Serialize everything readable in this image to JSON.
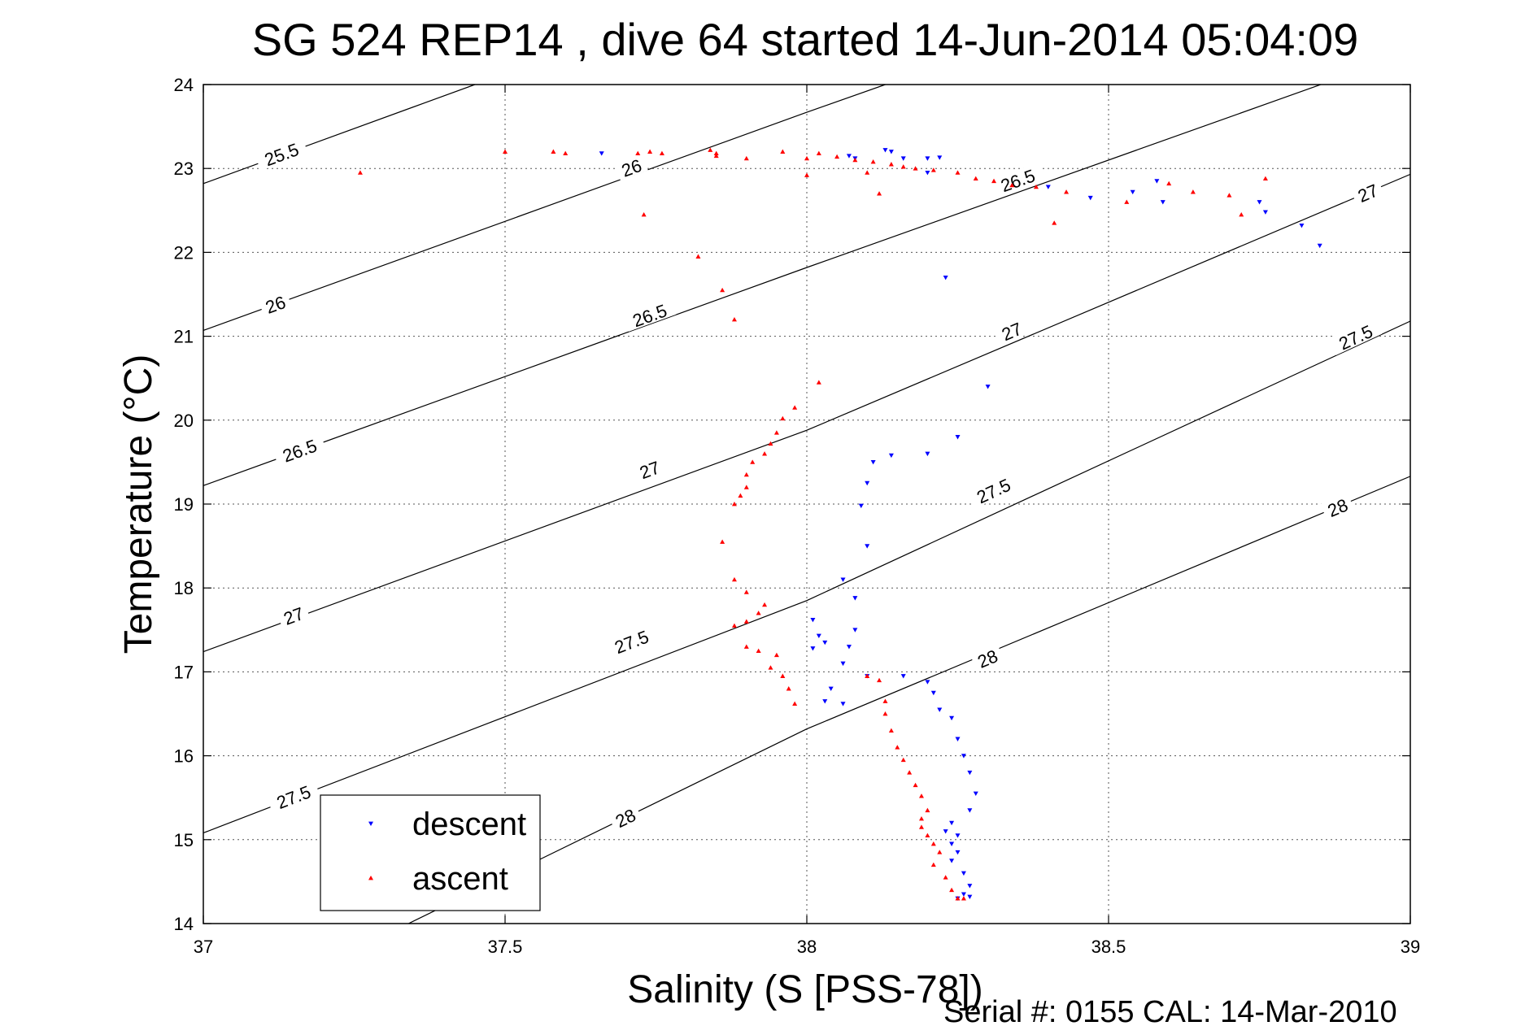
{
  "chart_data": {
    "type": "scatter",
    "title": "SG 524   REP14  , dive 64 started 14-Jun-2014 05:04:09",
    "xlabel": "Salinity (S [PSS-78])",
    "ylabel": "Temperature (°C)",
    "xlim": [
      37,
      39
    ],
    "ylim": [
      14,
      24
    ],
    "x_ticks": [
      "37",
      "37.5",
      "38",
      "38.5",
      "39"
    ],
    "y_ticks": [
      "14",
      "15",
      "16",
      "17",
      "18",
      "19",
      "20",
      "21",
      "22",
      "23",
      "24"
    ],
    "grid": true,
    "legend_position": "bottom-left",
    "footer": "Serial #: 0155  CAL: 14-Mar-2010",
    "density_contours": [
      {
        "value": 25.5,
        "points": [
          [
            37,
            22.82
          ],
          [
            37.45,
            24.0
          ]
        ],
        "labels": [
          {
            "text": "25.5",
            "s": 37.13,
            "t": 23.16
          }
        ]
      },
      {
        "value": 26,
        "points": [
          [
            37,
            21.07
          ],
          [
            38.0,
            23.67
          ],
          [
            38.13,
            24.0
          ]
        ],
        "labels": [
          {
            "text": "26",
            "s": 37.12,
            "t": 21.37
          },
          {
            "text": "26",
            "s": 37.71,
            "t": 23.0
          }
        ]
      },
      {
        "value": 26.5,
        "points": [
          [
            37,
            19.22
          ],
          [
            38.0,
            21.82
          ],
          [
            39.0,
            24.38
          ]
        ],
        "labels": [
          {
            "text": "26.5",
            "s": 37.16,
            "t": 19.63
          },
          {
            "text": "26.5",
            "s": 37.74,
            "t": 21.24
          },
          {
            "text": "26.5",
            "s": 38.35,
            "t": 22.85
          }
        ]
      },
      {
        "value": 27,
        "points": [
          [
            37,
            17.24
          ],
          [
            38.0,
            19.88
          ],
          [
            39.0,
            22.93
          ]
        ],
        "labels": [
          {
            "text": "27",
            "s": 37.15,
            "t": 17.66
          },
          {
            "text": "27",
            "s": 37.74,
            "t": 19.4
          },
          {
            "text": "27",
            "s": 38.34,
            "t": 21.05
          },
          {
            "text": "27",
            "s": 38.93,
            "t": 22.7
          }
        ]
      },
      {
        "value": 27.5,
        "points": [
          [
            37,
            15.08
          ],
          [
            38.0,
            17.85
          ],
          [
            39.0,
            21.18
          ]
        ],
        "labels": [
          {
            "text": "27.5",
            "s": 37.15,
            "t": 15.5
          },
          {
            "text": "27.5",
            "s": 37.71,
            "t": 17.35
          },
          {
            "text": "27.5",
            "s": 38.31,
            "t": 19.15
          },
          {
            "text": "27.5",
            "s": 38.91,
            "t": 20.98
          }
        ]
      },
      {
        "value": 28,
        "points": [
          [
            37.34,
            14.0
          ],
          [
            38.0,
            16.32
          ],
          [
            39.0,
            19.33
          ]
        ],
        "labels": [
          {
            "text": "28",
            "s": 37.7,
            "t": 15.25
          },
          {
            "text": "28",
            "s": 38.3,
            "t": 17.15
          },
          {
            "text": "28",
            "s": 38.88,
            "t": 18.95
          }
        ]
      }
    ],
    "series": [
      {
        "name": "descent",
        "marker": "down-triangle",
        "color": "#0000ff",
        "points": [
          [
            37.66,
            23.18
          ],
          [
            38.07,
            23.15
          ],
          [
            38.08,
            23.12
          ],
          [
            38.13,
            23.22
          ],
          [
            38.14,
            23.2
          ],
          [
            38.16,
            23.12
          ],
          [
            38.2,
            23.12
          ],
          [
            38.22,
            23.13
          ],
          [
            38.2,
            22.95
          ],
          [
            38.4,
            22.78
          ],
          [
            38.47,
            22.65
          ],
          [
            38.54,
            22.72
          ],
          [
            38.58,
            22.85
          ],
          [
            38.59,
            22.6
          ],
          [
            38.75,
            22.6
          ],
          [
            38.76,
            22.48
          ],
          [
            38.82,
            22.32
          ],
          [
            38.85,
            22.08
          ],
          [
            38.23,
            21.7
          ],
          [
            38.3,
            20.4
          ],
          [
            38.25,
            19.8
          ],
          [
            38.2,
            19.6
          ],
          [
            38.14,
            19.58
          ],
          [
            38.11,
            19.5
          ],
          [
            38.1,
            19.25
          ],
          [
            38.09,
            18.98
          ],
          [
            38.1,
            18.5
          ],
          [
            38.06,
            18.1
          ],
          [
            38.08,
            17.88
          ],
          [
            38.01,
            17.62
          ],
          [
            38.02,
            17.43
          ],
          [
            38.03,
            17.35
          ],
          [
            38.01,
            17.28
          ],
          [
            38.08,
            17.5
          ],
          [
            38.07,
            17.3
          ],
          [
            38.06,
            17.1
          ],
          [
            38.04,
            16.8
          ],
          [
            38.03,
            16.65
          ],
          [
            38.06,
            16.62
          ],
          [
            38.1,
            16.95
          ],
          [
            38.16,
            16.95
          ],
          [
            38.2,
            16.88
          ],
          [
            38.21,
            16.75
          ],
          [
            38.22,
            16.55
          ],
          [
            38.24,
            16.45
          ],
          [
            38.25,
            16.2
          ],
          [
            38.26,
            16.0
          ],
          [
            38.27,
            15.8
          ],
          [
            38.28,
            15.55
          ],
          [
            38.27,
            15.35
          ],
          [
            38.24,
            15.2
          ],
          [
            38.25,
            15.05
          ],
          [
            38.23,
            15.1
          ],
          [
            38.24,
            14.95
          ],
          [
            38.25,
            14.85
          ],
          [
            38.24,
            14.75
          ],
          [
            38.26,
            14.6
          ],
          [
            38.27,
            14.45
          ],
          [
            38.26,
            14.35
          ],
          [
            38.27,
            14.32
          ],
          [
            38.25,
            14.3
          ]
        ]
      },
      {
        "name": "ascent",
        "marker": "up-triangle",
        "color": "#ff0000",
        "points": [
          [
            37.26,
            22.95
          ],
          [
            37.5,
            23.2
          ],
          [
            37.58,
            23.2
          ],
          [
            37.6,
            23.18
          ],
          [
            37.72,
            23.18
          ],
          [
            37.74,
            23.2
          ],
          [
            37.76,
            23.18
          ],
          [
            37.84,
            23.22
          ],
          [
            37.85,
            23.18
          ],
          [
            37.85,
            23.15
          ],
          [
            37.9,
            23.12
          ],
          [
            37.96,
            23.2
          ],
          [
            38.0,
            23.12
          ],
          [
            38.02,
            23.18
          ],
          [
            38.05,
            23.14
          ],
          [
            38.08,
            23.1
          ],
          [
            38.11,
            23.08
          ],
          [
            38.14,
            23.05
          ],
          [
            38.16,
            23.02
          ],
          [
            38.18,
            23.0
          ],
          [
            38.21,
            22.98
          ],
          [
            38.25,
            22.95
          ],
          [
            38.28,
            22.88
          ],
          [
            38.31,
            22.85
          ],
          [
            38.34,
            22.8
          ],
          [
            38.38,
            22.78
          ],
          [
            38.43,
            22.72
          ],
          [
            38.53,
            22.6
          ],
          [
            38.6,
            22.82
          ],
          [
            38.64,
            22.72
          ],
          [
            38.7,
            22.68
          ],
          [
            38.72,
            22.45
          ],
          [
            38.76,
            22.88
          ],
          [
            38.1,
            22.95
          ],
          [
            38.12,
            22.7
          ],
          [
            38.0,
            22.92
          ],
          [
            38.41,
            22.35
          ],
          [
            37.73,
            22.45
          ],
          [
            37.82,
            21.95
          ],
          [
            37.86,
            21.55
          ],
          [
            37.88,
            21.2
          ],
          [
            38.02,
            20.45
          ],
          [
            37.98,
            20.15
          ],
          [
            37.96,
            20.02
          ],
          [
            37.95,
            19.85
          ],
          [
            37.94,
            19.72
          ],
          [
            37.93,
            19.6
          ],
          [
            37.91,
            19.5
          ],
          [
            37.9,
            19.35
          ],
          [
            37.9,
            19.2
          ],
          [
            37.89,
            19.1
          ],
          [
            37.88,
            19.0
          ],
          [
            37.86,
            18.55
          ],
          [
            37.88,
            18.1
          ],
          [
            37.9,
            17.95
          ],
          [
            37.93,
            17.8
          ],
          [
            37.92,
            17.7
          ],
          [
            37.9,
            17.6
          ],
          [
            37.88,
            17.55
          ],
          [
            37.9,
            17.3
          ],
          [
            37.92,
            17.25
          ],
          [
            37.95,
            17.2
          ],
          [
            37.94,
            17.05
          ],
          [
            37.96,
            16.95
          ],
          [
            37.97,
            16.8
          ],
          [
            37.98,
            16.62
          ],
          [
            38.1,
            16.95
          ],
          [
            38.12,
            16.9
          ],
          [
            38.13,
            16.65
          ],
          [
            38.13,
            16.5
          ],
          [
            38.14,
            16.3
          ],
          [
            38.15,
            16.1
          ],
          [
            38.16,
            15.95
          ],
          [
            38.17,
            15.8
          ],
          [
            38.18,
            15.65
          ],
          [
            38.19,
            15.52
          ],
          [
            38.2,
            15.35
          ],
          [
            38.19,
            15.25
          ],
          [
            38.19,
            15.15
          ],
          [
            38.2,
            15.05
          ],
          [
            38.21,
            14.95
          ],
          [
            38.22,
            14.85
          ],
          [
            38.21,
            14.7
          ],
          [
            38.23,
            14.55
          ],
          [
            38.24,
            14.4
          ],
          [
            38.25,
            14.3
          ],
          [
            38.26,
            14.3
          ]
        ]
      }
    ]
  }
}
